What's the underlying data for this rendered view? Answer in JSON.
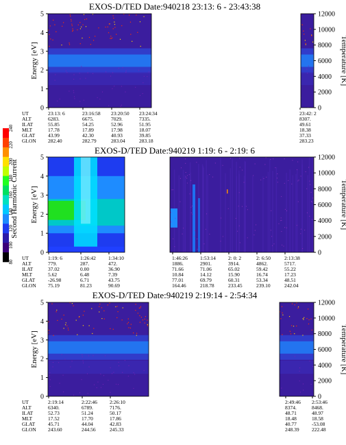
{
  "colorbar": {
    "label": "Second Harmonic Current",
    "ticks": [
      "80",
      "100",
      "120",
      "140",
      "160",
      "180",
      "200",
      "220",
      "240"
    ],
    "colors": [
      "#000000",
      "#3b007a",
      "#2b1aa8",
      "#1e3cf0",
      "#1e8cff",
      "#00c8ff",
      "#00e0c0",
      "#00e060",
      "#20ff20",
      "#c0ff00",
      "#ffe000",
      "#ff9000",
      "#ff4000",
      "#ff0000"
    ]
  },
  "colors": {
    "background": "#3b1d9e",
    "band": "#2a55ee",
    "band_core": "#1e8cff",
    "speckle_red": "#ff3000",
    "speckle_yellow": "#ffd000",
    "green": "#20e020",
    "cyan": "#00e0ff"
  },
  "chart_data": [
    {
      "type": "heatmap",
      "title": "EXOS-D/TED   Date:940218  23:13: 6 - 23:43:38",
      "ylabel": "Energy [eV]",
      "ylabel_right": "Temperature [K]",
      "ylim": [
        0,
        5
      ],
      "yticks": [
        "0",
        "1",
        "2",
        "3",
        "4",
        "5"
      ],
      "ylim_right": [
        0,
        12000
      ],
      "yticks_right": [
        "0",
        "2000",
        "4000",
        "6000",
        "8000",
        "10000",
        "12000"
      ],
      "data_segments": [
        [
          "23:13: 6",
          "23:26:00"
        ],
        [
          "23:41:30",
          "23:43:38"
        ]
      ],
      "band_energy_ev": 2.5,
      "row_labels": [
        "UT",
        "ALT",
        "ILAT",
        "MLT",
        "GLAT",
        "GLON"
      ],
      "columns": [
        [
          "23:13: 6",
          "6283.",
          "55.85",
          "17.78",
          "43.99",
          "282.40"
        ],
        [
          "23:16:58",
          "6675.",
          "54.25",
          "17.89",
          "42.30",
          "282.79"
        ],
        [
          "23:20:50",
          "7029.",
          "52.96",
          "17.98",
          "40.93",
          "283.04"
        ],
        [
          "23:24:34",
          "7335.",
          "51.95",
          "18.07",
          "39.85",
          "283.18"
        ],
        [
          "23:42: 2",
          "8307.",
          "49.61",
          "18.38",
          "37.33",
          "283.23"
        ]
      ]
    },
    {
      "type": "heatmap",
      "title": "EXOS-D/TED   Date:940219  1:19: 6 - 2:19: 6",
      "ylabel": "Energy [eV]",
      "ylabel_right": "Temperature [K]",
      "ylim": [
        0,
        5
      ],
      "yticks": [
        "0",
        "1",
        "2",
        "3",
        "4",
        "5"
      ],
      "ylim_right": [
        0,
        12000
      ],
      "yticks_right": [
        "0",
        "2000",
        "4000",
        "6000",
        "8000",
        "10000",
        "12000"
      ],
      "data_segments": [
        [
          "1:19: 6",
          "1:37:00"
        ],
        [
          "1:46:30",
          "2:19: 6"
        ]
      ],
      "row_labels": [
        "UT",
        "ALT",
        "ILAT",
        "MLT",
        "GLAT",
        "GLON"
      ],
      "columns": [
        [
          "1:19: 6",
          "779.",
          "37.02",
          "5.62",
          "-26.98",
          "75.19"
        ],
        [
          "1:26:42",
          "287.",
          "0.00",
          "6.48",
          "6.71",
          "81.23"
        ],
        [
          "1:34:10",
          "472.",
          "36.90",
          "7.39",
          "43.75",
          "90.69"
        ],
        [
          "1:46:26",
          "1886.",
          "71.66",
          "10.84",
          "77.01",
          "164.46"
        ],
        [
          "1:53:14",
          "2901.",
          "71.06",
          "14.12",
          "69.79",
          "218.78"
        ],
        [
          "2: 0: 2",
          "3914.",
          "65.02",
          "15.90",
          "60.31",
          "233.45"
        ],
        [
          "2: 6:50",
          "4862.",
          "59.42",
          "16.74",
          "53.34",
          "239.10"
        ],
        [
          "2:13:38",
          "5717.",
          "55.22",
          "17.23",
          "48.51",
          "242.04"
        ]
      ]
    },
    {
      "type": "heatmap",
      "title": "EXOS-D/TED   Date:940219  2:19:14 - 2:54:34",
      "ylabel": "Energy [eV]",
      "ylabel_right": "Temperature [K]",
      "ylim": [
        0,
        5
      ],
      "yticks": [
        "0",
        "1",
        "2",
        "3",
        "4",
        "5"
      ],
      "ylim_right": [
        0,
        12000
      ],
      "yticks_right": [
        "0",
        "2000",
        "4000",
        "6000",
        "8000",
        "10000",
        "12000"
      ],
      "data_segments": [
        [
          "2:19:14",
          "2:30:00"
        ],
        [
          "2:48:40",
          "2:54:34"
        ]
      ],
      "band_energy_ev": 2.6,
      "row_labels": [
        "UT",
        "ALT",
        "ILAT",
        "MLT",
        "GLAT",
        "GLON"
      ],
      "columns": [
        [
          "2:19:14",
          "6340.",
          "52.73",
          "17.52",
          "45.71",
          "243.60"
        ],
        [
          "2:22:46",
          "6789.",
          "51.24",
          "17.70",
          "44.04",
          "244.56"
        ],
        [
          "2:26:10",
          "7176.",
          "50.17",
          "17.86",
          "42.83",
          "245.33"
        ],
        [
          "2:49:46",
          "8374.",
          "48.71",
          "18.48",
          "40.77",
          "248.39"
        ],
        [
          "2:53:46",
          "8468.",
          "48.97",
          "18.58",
          "-53.08",
          "222.48"
        ]
      ]
    }
  ]
}
